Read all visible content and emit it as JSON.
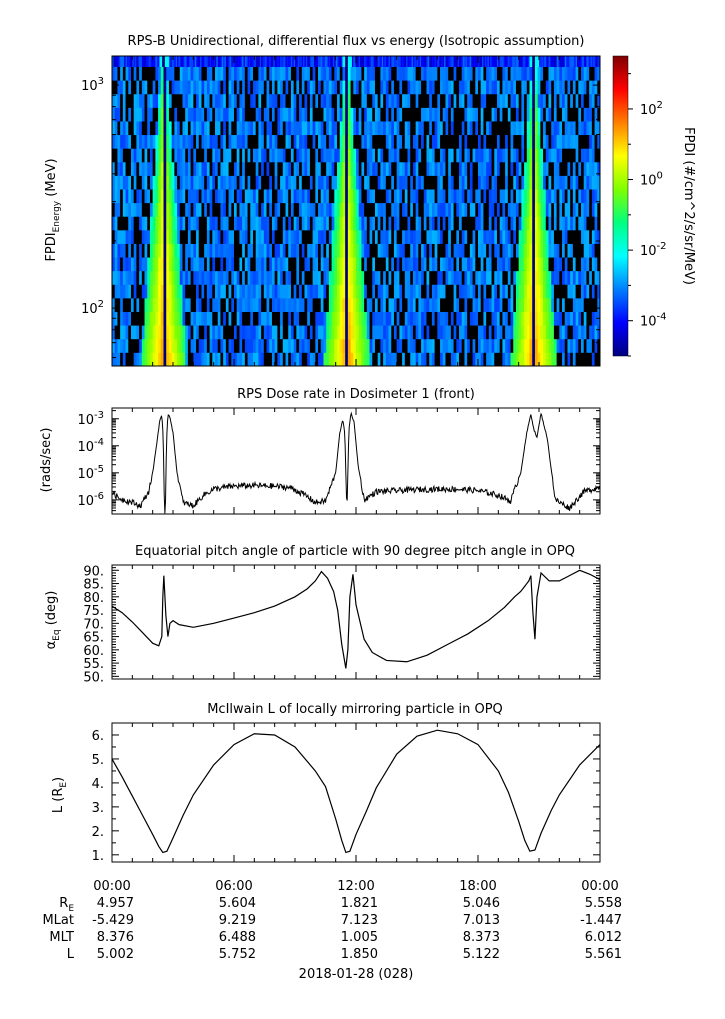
{
  "chart_data": [
    {
      "type": "heatmap",
      "title": "RPS-B  Unidirectional, differential flux vs energy (Isotropic assumption)",
      "ylabel_main": "FPDI",
      "ylabel_sub": "Energy",
      "ylabel_unit": "(MeV)",
      "yscale": "log",
      "ylim": [
        55,
        1350
      ],
      "y_ticks": [
        {
          "value": 100,
          "base": "10",
          "exp": "2"
        },
        {
          "value": 1000,
          "base": "10",
          "exp": "3"
        }
      ],
      "xlim_hours": [
        0,
        24
      ],
      "energy_bin_count": 22,
      "peak_times_hours": [
        2.55,
        11.55,
        20.75
      ],
      "cbar_label": "FPDI (#/cm^2/s/sr/MeV)",
      "cbar_scale": "log",
      "cbar_range_log10": [
        -5,
        3.5
      ],
      "cbar_ticks": [
        {
          "value": 100,
          "base": "10",
          "exp": "2"
        },
        {
          "value": 1,
          "base": "10",
          "exp": "0"
        },
        {
          "value": 0.01,
          "base": "10",
          "exp": "-2"
        },
        {
          "value": 0.0001,
          "base": "10",
          "exp": "-4"
        }
      ],
      "colormap": [
        "#00007f",
        "#0000ff",
        "#007fff",
        "#00ffff",
        "#00ff80",
        "#7fff00",
        "#ffff00",
        "#ff7f00",
        "#ff0000",
        "#7f0000"
      ]
    },
    {
      "type": "line",
      "title": "RPS  Dose rate in Dosimeter 1 (front)",
      "ylabel": "(rads/sec)",
      "yscale": "log",
      "ylim": [
        3e-07,
        0.0025
      ],
      "y_ticks": [
        {
          "value": 1e-06,
          "base": "10",
          "exp": "-6"
        },
        {
          "value": 1e-05,
          "base": "10",
          "exp": "-5"
        },
        {
          "value": 0.0001,
          "base": "10",
          "exp": "-4"
        },
        {
          "value": 0.001,
          "base": "10",
          "exp": "-3"
        }
      ],
      "xlim_hours": [
        0,
        24
      ],
      "series": [
        {
          "x": [
            0,
            0.3,
            0.6,
            1.0,
            1.4,
            1.8,
            2.0,
            2.2,
            2.35,
            2.45,
            2.52,
            2.58,
            2.62,
            2.68,
            2.75,
            2.85,
            3.0,
            3.2,
            3.5,
            4.0,
            4.5,
            5.0,
            6.0,
            7.0,
            8.0,
            8.8,
            9.5,
            10.0,
            10.5,
            11.0,
            11.2,
            11.35,
            11.45,
            11.55,
            11.65,
            11.75,
            11.9,
            12.1,
            12.4,
            13.0,
            14.0,
            15.0,
            16.0,
            17.0,
            18.0,
            19.0,
            19.6,
            20.1,
            20.4,
            20.6,
            20.75,
            20.9,
            21.1,
            21.4,
            21.8,
            22.5,
            23.2,
            24.0
          ],
          "y": [
            2e-06,
            1.2e-06,
            1e-06,
            8e-07,
            6e-07,
            2e-06,
            1e-05,
            0.00012,
            0.0009,
            0.0013,
            0.0002,
            3e-07,
            3e-07,
            0.00014,
            0.0015,
            0.0012,
            0.0003,
            1e-05,
            8e-07,
            6e-07,
            1.5e-06,
            2.5e-06,
            3.2e-06,
            3.4e-06,
            3.2e-06,
            2.8e-06,
            1.5e-06,
            8e-07,
            9e-07,
            1e-05,
            0.0003,
            0.0009,
            0.0003,
            3e-07,
            0.0004,
            0.0016,
            0.0008,
            2e-05,
            1e-06,
            2e-06,
            2.2e-06,
            2.4e-06,
            2.5e-06,
            2.5e-06,
            2.2e-06,
            1.5e-06,
            9e-07,
            1e-05,
            0.0003,
            0.0015,
            0.0004,
            0.0002,
            0.0016,
            0.0002,
            1e-06,
            5e-07,
            2e-06,
            3e-06
          ]
        }
      ]
    },
    {
      "type": "line",
      "title": "Equatorial pitch angle of particle with 90 degree pitch angle in OPQ",
      "ylabel_main": "α",
      "ylabel_sub": "Eq",
      "ylabel_unit": "(deg)",
      "ylim": [
        49,
        92
      ],
      "y_ticks": [
        50,
        55,
        60,
        65,
        70,
        75,
        80,
        85,
        90
      ],
      "xlim_hours": [
        0,
        24
      ],
      "series": [
        {
          "x": [
            0,
            0.5,
            1.0,
            1.5,
            2.0,
            2.3,
            2.45,
            2.5,
            2.55,
            2.65,
            2.75,
            2.85,
            3.0,
            3.3,
            4.0,
            5.0,
            6.0,
            7.0,
            8.0,
            9.0,
            9.6,
            10.0,
            10.3,
            10.6,
            10.9,
            11.1,
            11.3,
            11.5,
            11.6,
            11.7,
            11.85,
            12.0,
            12.4,
            12.8,
            13.5,
            14.5,
            15.5,
            16.5,
            17.5,
            18.5,
            19.3,
            19.8,
            20.1,
            20.3,
            20.4,
            20.5,
            20.55,
            20.6,
            20.7,
            20.8,
            20.9,
            21.1,
            21.5,
            22.0,
            22.5,
            23.0,
            23.5,
            24.0
          ],
          "y": [
            76.5,
            74,
            70.5,
            66.5,
            62.5,
            61.5,
            65,
            80,
            88,
            73,
            65,
            70,
            71,
            69.5,
            68.5,
            70,
            72,
            74,
            76.5,
            80,
            83,
            86,
            89.5,
            87,
            82,
            75,
            62,
            53,
            60,
            80,
            88.5,
            77,
            64,
            59,
            56,
            55.5,
            58,
            62,
            66,
            71,
            76,
            80,
            82,
            84,
            85,
            86,
            87,
            88,
            74,
            64,
            80,
            89,
            86,
            86,
            88,
            90,
            88.5,
            86.5
          ]
        }
      ]
    },
    {
      "type": "line",
      "title": "McIlwain L of locally mirroring particle in OPQ",
      "ylabel_main": "L (R",
      "ylabel_sub": "E",
      "ylabel_unit": ")",
      "ylim": [
        0.7,
        6.5
      ],
      "y_ticks": [
        1,
        2,
        3,
        4,
        5,
        6
      ],
      "xlim_hours": [
        0,
        24
      ],
      "series": [
        {
          "x": [
            0,
            0.5,
            1.0,
            1.5,
            2.0,
            2.3,
            2.5,
            2.7,
            3.0,
            3.5,
            4.0,
            5.0,
            6.0,
            7.0,
            8.0,
            9.0,
            10.0,
            10.5,
            11.0,
            11.3,
            11.5,
            11.7,
            12.0,
            12.5,
            13.0,
            14.0,
            15.0,
            16.0,
            17.0,
            18.0,
            19.0,
            19.5,
            20.0,
            20.3,
            20.55,
            20.8,
            21.1,
            21.6,
            22.0,
            23.0,
            24.0
          ],
          "y": [
            5.0,
            4.25,
            3.45,
            2.65,
            1.85,
            1.35,
            1.1,
            1.15,
            1.7,
            2.65,
            3.5,
            4.75,
            5.6,
            6.05,
            6.0,
            5.5,
            4.5,
            3.85,
            2.5,
            1.6,
            1.1,
            1.15,
            1.85,
            2.8,
            3.8,
            5.2,
            5.95,
            6.2,
            6.05,
            5.6,
            4.5,
            3.6,
            2.4,
            1.6,
            1.15,
            1.2,
            1.9,
            2.85,
            3.5,
            4.75,
            5.6
          ]
        }
      ]
    }
  ],
  "x_axis": {
    "tick_labels": [
      "00:00",
      "06:00",
      "12:00",
      "18:00",
      "00:00"
    ],
    "date_label": "2018-01-28 (028)"
  },
  "ephemeris": {
    "rows": [
      {
        "label_main": "R",
        "label_sub": "E",
        "values": [
          "4.957",
          "5.604",
          "1.821",
          "5.046",
          "5.558"
        ]
      },
      {
        "label_main": "MLat",
        "label_sub": "",
        "values": [
          "-5.429",
          "9.219",
          "7.123",
          "7.013",
          "-1.447"
        ]
      },
      {
        "label_main": "MLT",
        "label_sub": "",
        "values": [
          "8.376",
          "6.488",
          "1.005",
          "8.373",
          "6.012"
        ]
      },
      {
        "label_main": "L",
        "label_sub": "",
        "values": [
          "5.002",
          "5.752",
          "1.850",
          "5.122",
          "5.561"
        ]
      }
    ]
  }
}
